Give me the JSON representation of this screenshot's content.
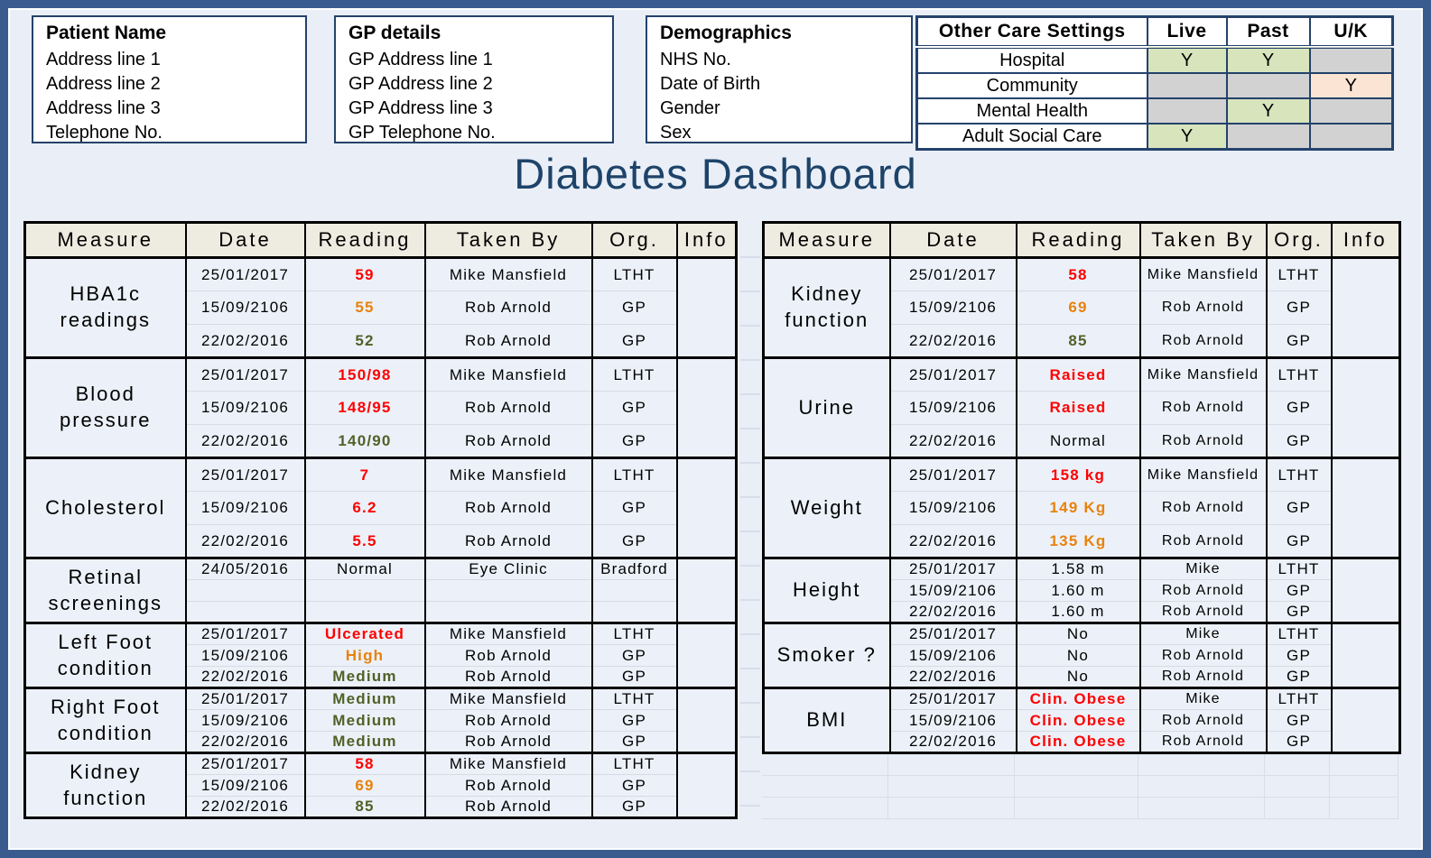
{
  "title": "Diabetes Dashboard",
  "top": {
    "patient_box": {
      "title": "Patient Name",
      "lines": [
        "Address line 1",
        "Address line 2",
        "Address line 3",
        "Telephone No."
      ]
    },
    "gp_box": {
      "title": "GP details",
      "lines": [
        "GP Address line 1",
        "GP Address line 2",
        "GP Address line 3",
        "GP Telephone No."
      ]
    },
    "demographics_box": {
      "title": "Demographics",
      "lines": [
        "NHS No.",
        "Date of Birth",
        "Gender",
        "Sex"
      ]
    },
    "care_settings": {
      "headers": [
        "Other Care Settings",
        "Live",
        "Past",
        "U/K"
      ],
      "rows": [
        {
          "label": "Hospital",
          "live": {
            "text": "Y",
            "bg": "green"
          },
          "past": {
            "text": "Y",
            "bg": "green"
          },
          "uk": {
            "text": "",
            "bg": "gray"
          }
        },
        {
          "label": "Community",
          "live": {
            "text": "",
            "bg": "gray"
          },
          "past": {
            "text": "",
            "bg": "gray"
          },
          "uk": {
            "text": "Y",
            "bg": "peach"
          }
        },
        {
          "label": "Mental Health",
          "live": {
            "text": "",
            "bg": "gray"
          },
          "past": {
            "text": "Y",
            "bg": "green"
          },
          "uk": {
            "text": "",
            "bg": "gray"
          }
        },
        {
          "label": "Adult Social Care",
          "live": {
            "text": "Y",
            "bg": "green"
          },
          "past": {
            "text": "",
            "bg": "gray"
          },
          "uk": {
            "text": "",
            "bg": "gray"
          }
        }
      ]
    }
  },
  "tables": {
    "headers": [
      "Measure",
      "Date",
      "Reading",
      "Taken By",
      "Org.",
      "Info"
    ],
    "left": {
      "sections": [
        {
          "measure": "HBA1c readings",
          "size": "lg",
          "rows": [
            {
              "date": "25/01/2017",
              "reading": "59",
              "color": "red",
              "taken_by": "Mike Mansfield",
              "org": "LTHT"
            },
            {
              "date": "15/09/2106",
              "reading": "55",
              "color": "orange",
              "taken_by": "Rob Arnold",
              "org": "GP"
            },
            {
              "date": "22/02/2016",
              "reading": "52",
              "color": "green",
              "taken_by": "Rob Arnold",
              "org": "GP"
            }
          ]
        },
        {
          "measure": "Blood pressure",
          "size": "lg",
          "rows": [
            {
              "date": "25/01/2017",
              "reading": "150/98",
              "color": "red",
              "taken_by": "Mike Mansfield",
              "org": "LTHT"
            },
            {
              "date": "15/09/2106",
              "reading": "148/95",
              "color": "red",
              "taken_by": "Rob Arnold",
              "org": "GP"
            },
            {
              "date": "22/02/2016",
              "reading": "140/90",
              "color": "green",
              "taken_by": "Rob Arnold",
              "org": "GP"
            }
          ]
        },
        {
          "measure": "Cholesterol",
          "size": "lg",
          "rows": [
            {
              "date": "25/01/2017",
              "reading": "7",
              "color": "red",
              "taken_by": "Mike Mansfield",
              "org": "LTHT"
            },
            {
              "date": "15/09/2106",
              "reading": "6.2",
              "color": "red",
              "taken_by": "Rob Arnold",
              "org": "GP"
            },
            {
              "date": "22/02/2016",
              "reading": "5.5",
              "color": "red",
              "taken_by": "Rob Arnold",
              "org": "GP"
            }
          ]
        },
        {
          "measure": "Retinal screenings",
          "size": "sm",
          "rows": [
            {
              "date": "24/05/2016",
              "reading": "Normal",
              "color": "black",
              "taken_by": "Eye Clinic",
              "org": "Bradford"
            },
            {
              "date": "",
              "reading": "",
              "color": "black",
              "taken_by": "",
              "org": ""
            },
            {
              "date": "",
              "reading": "",
              "color": "black",
              "taken_by": "",
              "org": ""
            }
          ]
        },
        {
          "measure": "Left Foot condition",
          "size": "sm",
          "rows": [
            {
              "date": "25/01/2017",
              "reading": "Ulcerated",
              "color": "red",
              "taken_by": "Mike Mansfield",
              "org": "LTHT"
            },
            {
              "date": "15/09/2106",
              "reading": "High",
              "color": "orange",
              "taken_by": "Rob Arnold",
              "org": "GP"
            },
            {
              "date": "22/02/2016",
              "reading": "Medium",
              "color": "green",
              "taken_by": "Rob Arnold",
              "org": "GP"
            }
          ]
        },
        {
          "measure": "Right Foot condition",
          "size": "sm",
          "rows": [
            {
              "date": "25/01/2017",
              "reading": "Medium",
              "color": "green",
              "taken_by": "Mike Mansfield",
              "org": "LTHT"
            },
            {
              "date": "15/09/2106",
              "reading": "Medium",
              "color": "green",
              "taken_by": "Rob Arnold",
              "org": "GP"
            },
            {
              "date": "22/02/2016",
              "reading": "Medium",
              "color": "green",
              "taken_by": "Rob Arnold",
              "org": "GP"
            }
          ]
        },
        {
          "measure": "Kidney function",
          "size": "sm",
          "rows": [
            {
              "date": "25/01/2017",
              "reading": "58",
              "color": "red",
              "taken_by": "Mike Mansfield",
              "org": "LTHT"
            },
            {
              "date": "15/09/2106",
              "reading": "69",
              "color": "orange",
              "taken_by": "Rob Arnold",
              "org": "GP"
            },
            {
              "date": "22/02/2016",
              "reading": "85",
              "color": "green",
              "taken_by": "Rob Arnold",
              "org": "GP"
            }
          ]
        }
      ]
    },
    "right": {
      "sections": [
        {
          "measure": "Kidney function",
          "size": "lg",
          "rows": [
            {
              "date": "25/01/2017",
              "reading": "58",
              "color": "red",
              "taken_by": "Mike Mansfield",
              "org": "LTHT"
            },
            {
              "date": "15/09/2106",
              "reading": "69",
              "color": "orange",
              "taken_by": "Rob Arnold",
              "org": "GP"
            },
            {
              "date": "22/02/2016",
              "reading": "85",
              "color": "green",
              "taken_by": "Rob Arnold",
              "org": "GP"
            }
          ]
        },
        {
          "measure": "Urine",
          "size": "lg",
          "rows": [
            {
              "date": "25/01/2017",
              "reading": "Raised",
              "color": "red",
              "taken_by": "Mike Mansfield",
              "org": "LTHT"
            },
            {
              "date": "15/09/2106",
              "reading": "Raised",
              "color": "red",
              "taken_by": "Rob Arnold",
              "org": "GP"
            },
            {
              "date": "22/02/2016",
              "reading": "Normal",
              "color": "black",
              "taken_by": "Rob Arnold",
              "org": "GP"
            }
          ]
        },
        {
          "measure": "Weight",
          "size": "lg",
          "rows": [
            {
              "date": "25/01/2017",
              "reading": "158 kg",
              "color": "red",
              "taken_by": "Mike Mansfield",
              "org": "LTHT"
            },
            {
              "date": "15/09/2106",
              "reading": "149 Kg",
              "color": "orange",
              "taken_by": "Rob Arnold",
              "org": "GP"
            },
            {
              "date": "22/02/2016",
              "reading": "135 Kg",
              "color": "orange",
              "taken_by": "Rob Arnold",
              "org": "GP"
            }
          ]
        },
        {
          "measure": "Height",
          "size": "sm",
          "rows": [
            {
              "date": "25/01/2017",
              "reading": "1.58 m",
              "color": "black",
              "taken_by": "Mike",
              "org": "LTHT"
            },
            {
              "date": "15/09/2106",
              "reading": "1.60 m",
              "color": "black",
              "taken_by": "Rob Arnold",
              "org": "GP"
            },
            {
              "date": "22/02/2016",
              "reading": "1.60 m",
              "color": "black",
              "taken_by": "Rob Arnold",
              "org": "GP"
            }
          ]
        },
        {
          "measure": "Smoker ?",
          "size": "sm",
          "rows": [
            {
              "date": "25/01/2017",
              "reading": "No",
              "color": "black",
              "taken_by": "Mike",
              "org": "LTHT"
            },
            {
              "date": "15/09/2106",
              "reading": "No",
              "color": "black",
              "taken_by": "Rob Arnold",
              "org": "GP"
            },
            {
              "date": "22/02/2016",
              "reading": "No",
              "color": "black",
              "taken_by": "Rob Arnold",
              "org": "GP"
            }
          ]
        },
        {
          "measure": "BMI",
          "size": "sm",
          "rows": [
            {
              "date": "25/01/2017",
              "reading": "Clin. Obese",
              "color": "red",
              "taken_by": "Mike",
              "org": "LTHT"
            },
            {
              "date": "15/09/2106",
              "reading": "Clin. Obese",
              "color": "red",
              "taken_by": "Rob Arnold",
              "org": "GP"
            },
            {
              "date": "22/02/2016",
              "reading": "Clin. Obese",
              "color": "red",
              "taken_by": "Rob Arnold",
              "org": "GP"
            }
          ]
        }
      ]
    }
  },
  "colors": {
    "frame": "#3A5B8E",
    "page_bg": "#E9EEF7",
    "box_border": "#24426B",
    "title_text": "#1E4369",
    "table_header_bg": "#EEEBE0",
    "cell_bg": "#ECF1F9",
    "reading_red": "#FF0000",
    "reading_orange": "#E8820E",
    "reading_green": "#4F6228",
    "reading_black": "#000000",
    "fill_green": "#D7E4BC",
    "fill_gray": "#D2D2D2",
    "fill_peach": "#FCE4D4"
  }
}
